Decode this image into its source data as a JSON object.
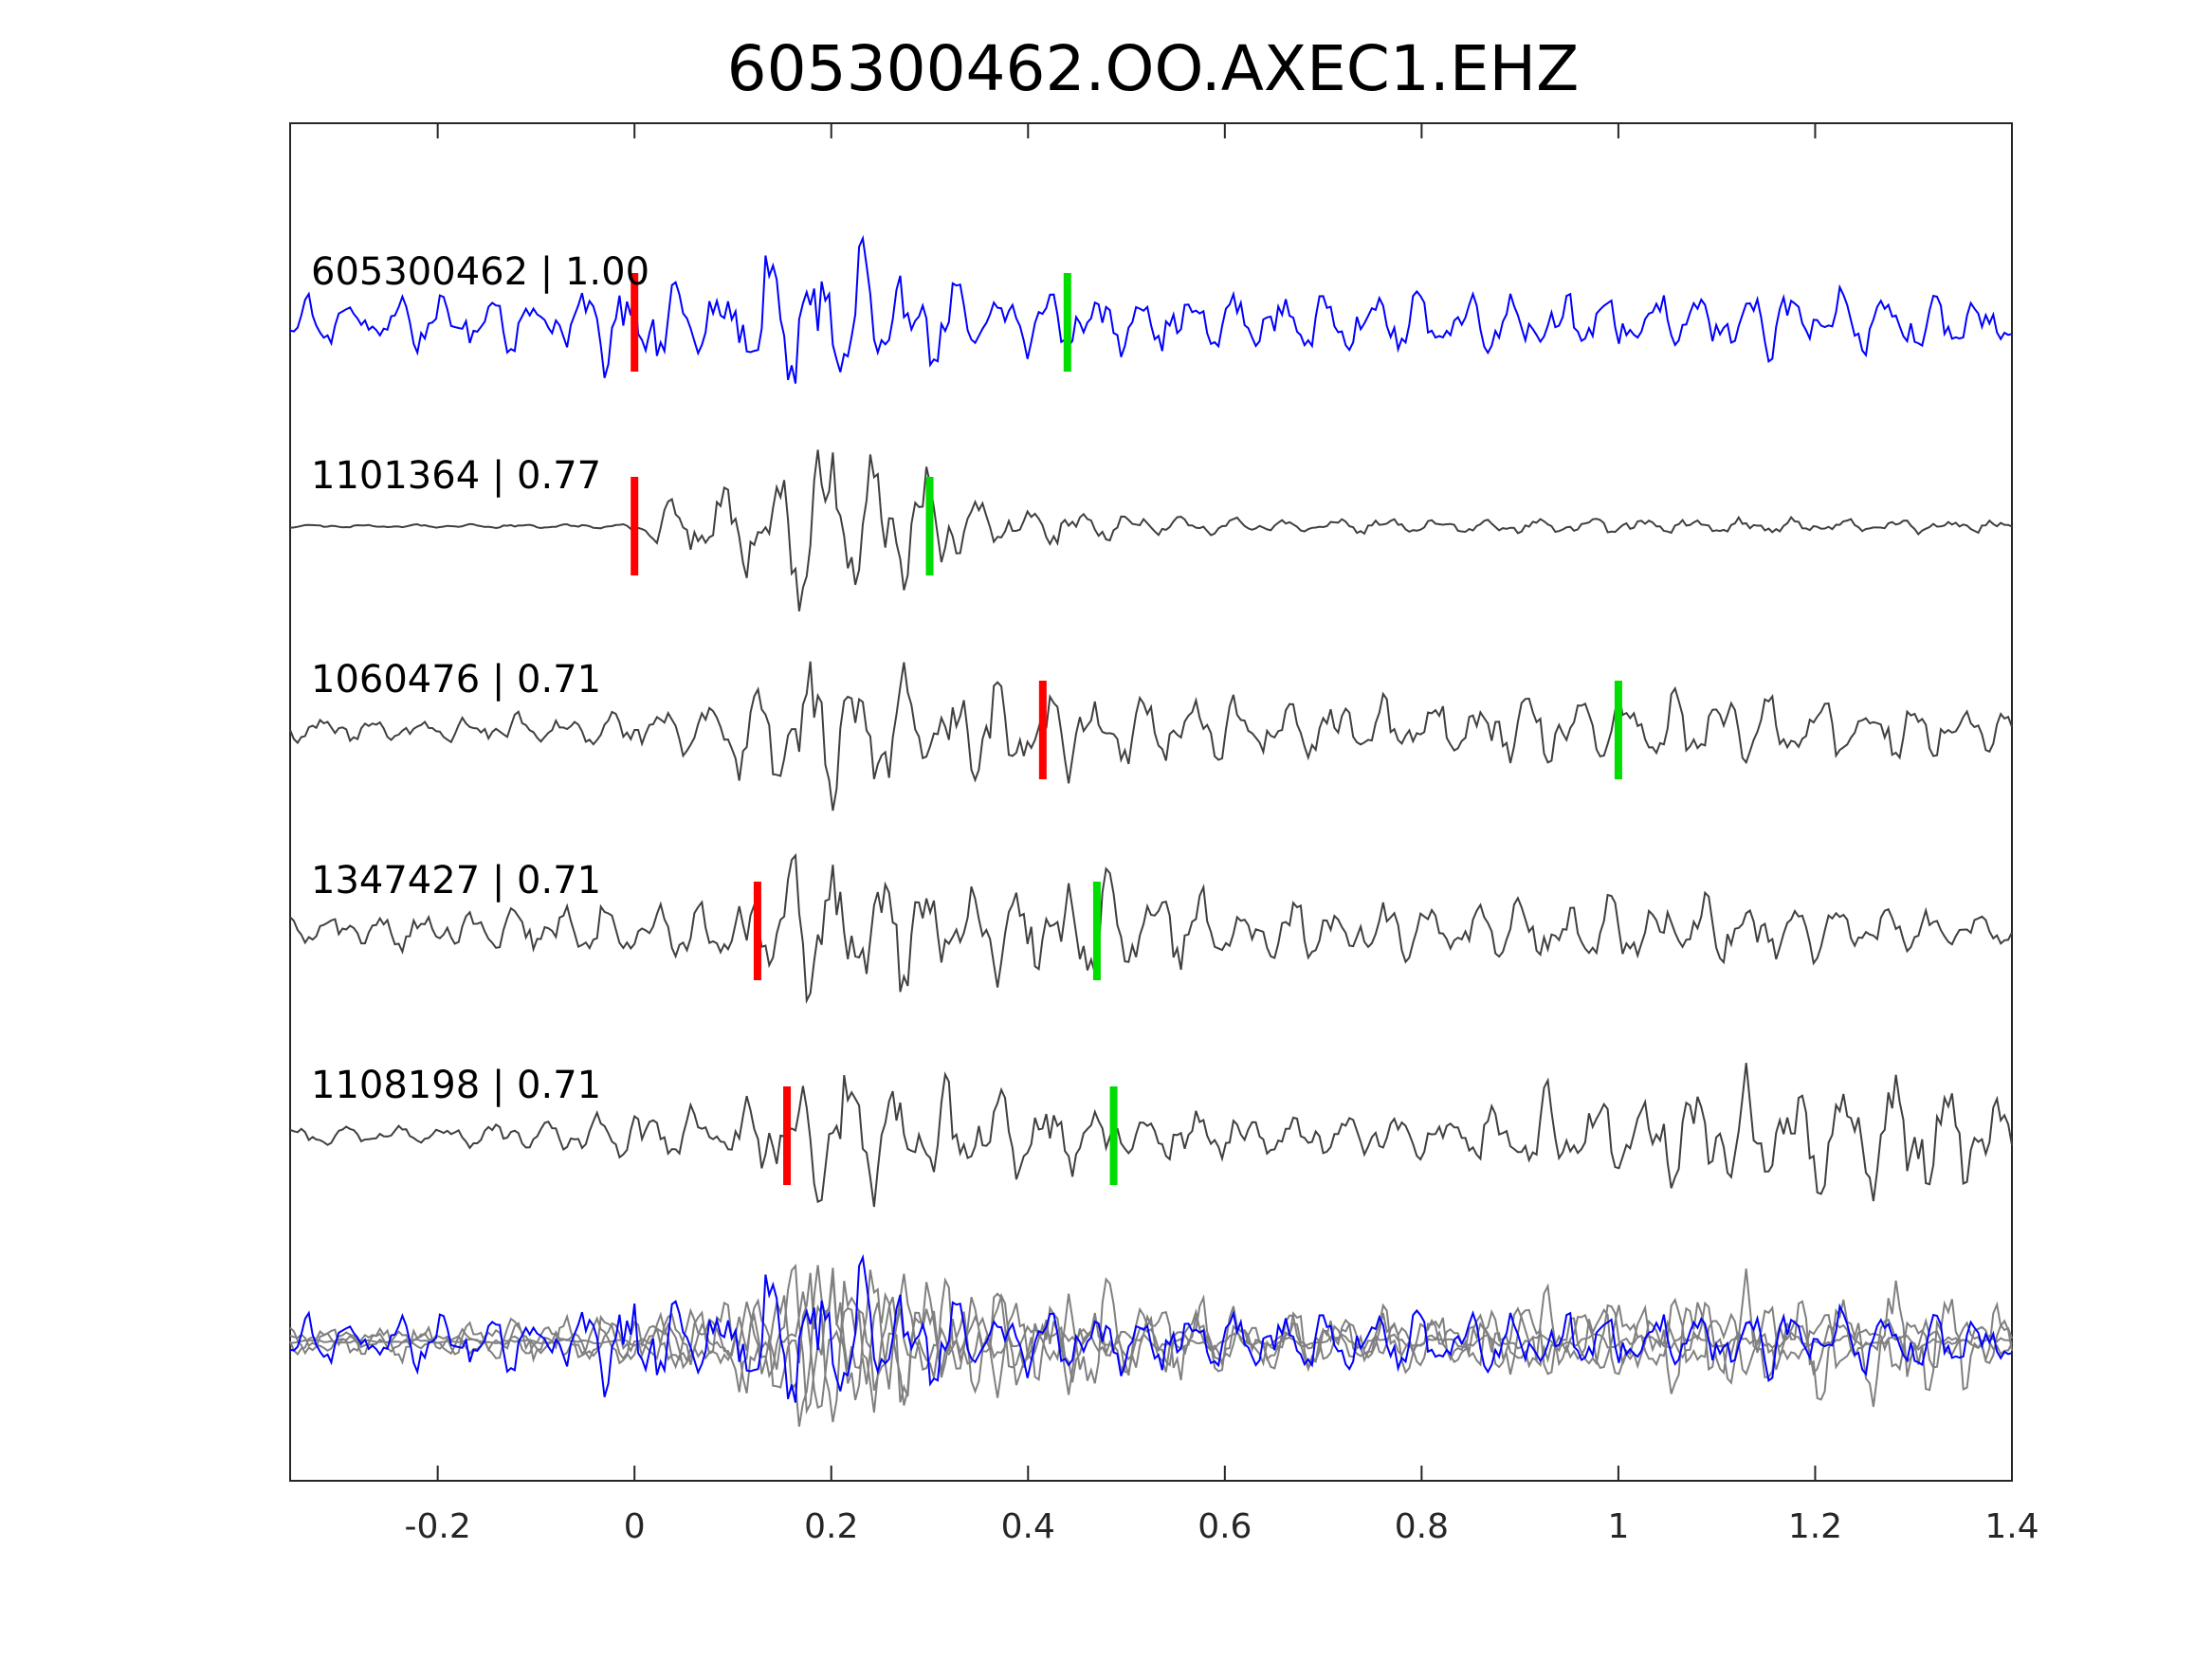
{
  "chart_data": {
    "type": "line",
    "title": "605300462.OO.AXEC1.EHZ",
    "xlabel": "",
    "ylabel": "",
    "xlim": [
      -0.35,
      1.4
    ],
    "xticks": [
      -0.2,
      0,
      0.2,
      0.4,
      0.6,
      0.8,
      1,
      1.2,
      1.4
    ],
    "xtick_labels": [
      "-0.2",
      "0",
      "0.2",
      "0.4",
      "0.6",
      "0.8",
      "1",
      "1.2",
      "1.4"
    ],
    "grid": false,
    "legend": "none",
    "colors": {
      "main": "#0000ff",
      "other": "#404040",
      "overlay_other": "#808080",
      "p_pick": "#ff0000",
      "s_pick": "#00dd00"
    },
    "traces": [
      {
        "id": "605300462",
        "score": "1.00",
        "label": "605300462 | 1.00",
        "color": "main",
        "p_pick": 0.0,
        "s_pick": 0.44,
        "envelope": [
          [
            -0.35,
            0.32
          ],
          [
            -0.05,
            0.38
          ],
          [
            0.0,
            0.85
          ],
          [
            0.05,
            0.5
          ],
          [
            0.1,
            0.45
          ],
          [
            0.15,
            1.0
          ],
          [
            0.18,
            1.2
          ],
          [
            0.22,
            1.1
          ],
          [
            0.27,
            0.8
          ],
          [
            0.33,
            0.5
          ],
          [
            0.4,
            0.45
          ],
          [
            0.5,
            0.38
          ],
          [
            0.7,
            0.38
          ],
          [
            1.0,
            0.4
          ],
          [
            1.3,
            0.45
          ],
          [
            1.4,
            0.3
          ]
        ]
      },
      {
        "id": "1101364",
        "score": "0.77",
        "label": "1101364 | 0.77",
        "color": "other",
        "p_pick": 0.0,
        "s_pick": 0.3,
        "envelope": [
          [
            -0.35,
            0.02
          ],
          [
            -0.01,
            0.03
          ],
          [
            0.02,
            0.3
          ],
          [
            0.08,
            0.5
          ],
          [
            0.13,
            0.65
          ],
          [
            0.18,
            1.2
          ],
          [
            0.23,
            1.05
          ],
          [
            0.28,
            0.85
          ],
          [
            0.35,
            0.35
          ],
          [
            0.45,
            0.2
          ],
          [
            0.55,
            0.12
          ],
          [
            0.8,
            0.1
          ],
          [
            1.1,
            0.1
          ],
          [
            1.4,
            0.08
          ]
        ]
      },
      {
        "id": "1060476",
        "score": "0.71",
        "label": "1060476 | 0.71",
        "color": "other",
        "p_pick": 0.415,
        "s_pick": 1.0,
        "envelope": [
          [
            -0.35,
            0.15
          ],
          [
            -0.05,
            0.2
          ],
          [
            0.05,
            0.35
          ],
          [
            0.1,
            0.55
          ],
          [
            0.16,
            0.85
          ],
          [
            0.18,
            1.1
          ],
          [
            0.24,
            0.9
          ],
          [
            0.32,
            0.7
          ],
          [
            0.42,
            0.55
          ],
          [
            0.55,
            0.45
          ],
          [
            0.8,
            0.4
          ],
          [
            1.0,
            0.45
          ],
          [
            1.4,
            0.35
          ]
        ]
      },
      {
        "id": "1347427",
        "score": "0.71",
        "label": "1347427 | 0.71",
        "color": "other",
        "p_pick": 0.125,
        "s_pick": 0.47,
        "envelope": [
          [
            -0.35,
            0.18
          ],
          [
            0.0,
            0.35
          ],
          [
            0.1,
            0.5
          ],
          [
            0.15,
            0.85
          ],
          [
            0.2,
            1.05
          ],
          [
            0.25,
            0.8
          ],
          [
            0.35,
            0.6
          ],
          [
            0.45,
            0.65
          ],
          [
            0.5,
            0.75
          ],
          [
            0.6,
            0.35
          ],
          [
            1.0,
            0.45
          ],
          [
            1.2,
            0.35
          ],
          [
            1.4,
            0.2
          ]
        ]
      },
      {
        "id": "1108198",
        "score": "0.71",
        "label": "1108198 | 0.71",
        "color": "other",
        "p_pick": 0.155,
        "s_pick": 0.487,
        "envelope": [
          [
            -0.35,
            0.12
          ],
          [
            -0.1,
            0.18
          ],
          [
            0.0,
            0.4
          ],
          [
            0.1,
            0.3
          ],
          [
            0.17,
            0.75
          ],
          [
            0.21,
            1.1
          ],
          [
            0.26,
            0.8
          ],
          [
            0.38,
            0.55
          ],
          [
            0.5,
            0.35
          ],
          [
            0.7,
            0.25
          ],
          [
            0.85,
            0.3
          ],
          [
            0.92,
            0.55
          ],
          [
            1.05,
            0.6
          ],
          [
            1.18,
            0.95
          ],
          [
            1.3,
            0.75
          ],
          [
            1.4,
            0.6
          ]
        ]
      }
    ]
  }
}
